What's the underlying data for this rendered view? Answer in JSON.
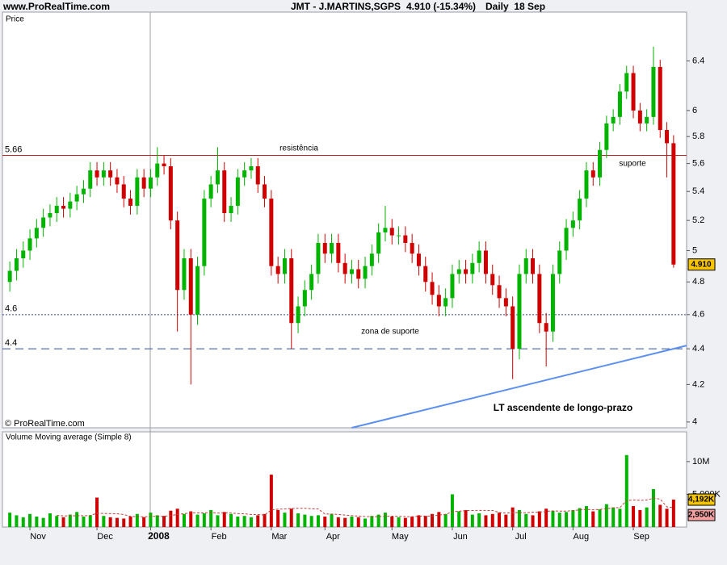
{
  "chart_data": {
    "type": "candlestick",
    "site": "www.ProRealTime.com",
    "title": "JMT - J.MARTINS,SGPS",
    "last": "4.910 (-15.34%)",
    "period": "Daily  18 Sep",
    "y_label": "Price",
    "copyright": "© ProRealTime.com",
    "log_scale": true,
    "ylim": [
      3.97,
      6.82
    ],
    "yticks": [
      4,
      4.2,
      4.4,
      4.6,
      4.8,
      5,
      5.2,
      5.4,
      5.6,
      5.8,
      6,
      6.4
    ],
    "up_color": "#00b400",
    "down_color": "#d00000",
    "categories": [
      null,
      null,
      null,
      "Nov",
      null,
      null,
      null,
      null,
      null,
      null,
      null,
      null,
      null,
      "Dec",
      null,
      null,
      null,
      null,
      null,
      null,
      null,
      "2008",
      null,
      null,
      null,
      null,
      null,
      null,
      null,
      null,
      "Feb",
      null,
      null,
      null,
      null,
      null,
      null,
      null,
      null,
      "Mar",
      null,
      null,
      null,
      null,
      null,
      null,
      null,
      "Apr",
      null,
      null,
      null,
      null,
      null,
      null,
      null,
      null,
      null,
      "May",
      null,
      null,
      null,
      null,
      null,
      null,
      null,
      null,
      "Jun",
      null,
      null,
      null,
      null,
      null,
      null,
      null,
      null,
      "Jul",
      null,
      null,
      null,
      null,
      null,
      null,
      null,
      null,
      "Aug",
      null,
      null,
      null,
      null,
      null,
      null,
      null,
      null,
      "Sep",
      null,
      null,
      null,
      null,
      null,
      null
    ],
    "open": [
      4.8,
      4.87,
      4.95,
      5.0,
      5.08,
      5.15,
      5.22,
      5.25,
      5.3,
      5.28,
      5.33,
      5.38,
      5.42,
      5.55,
      5.5,
      5.55,
      5.5,
      5.45,
      5.35,
      5.3,
      5.5,
      5.42,
      5.5,
      5.6,
      5.58,
      5.2,
      4.75,
      4.95,
      4.6,
      4.9,
      5.35,
      5.45,
      5.55,
      5.25,
      5.3,
      5.5,
      5.55,
      5.58,
      5.45,
      5.35,
      4.9,
      4.85,
      4.95,
      4.55,
      4.65,
      4.75,
      4.85,
      5.05,
      4.98,
      5.05,
      4.92,
      4.85,
      4.88,
      4.82,
      4.9,
      4.98,
      5.12,
      5.15,
      5.1,
      5.1,
      5.05,
      4.98,
      4.9,
      4.8,
      4.72,
      4.65,
      4.7,
      4.85,
      4.88,
      4.85,
      4.92,
      5.0,
      4.85,
      4.78,
      4.7,
      4.65,
      4.4,
      4.85,
      4.95,
      4.85,
      4.55,
      4.5,
      4.85,
      5.0,
      5.15,
      5.2,
      5.35,
      5.55,
      5.5,
      5.7,
      5.9,
      5.95,
      6.15,
      6.3,
      6.0,
      5.9,
      5.95,
      6.35,
      5.85,
      5.75
    ],
    "high": [
      4.93,
      5.01,
      5.06,
      5.14,
      5.21,
      5.28,
      5.31,
      5.36,
      5.36,
      5.39,
      5.44,
      5.48,
      5.61,
      5.61,
      5.61,
      5.61,
      5.56,
      5.51,
      5.41,
      5.56,
      5.56,
      5.56,
      5.72,
      5.66,
      5.64,
      5.26,
      5.01,
      5.01,
      4.96,
      5.41,
      5.51,
      5.72,
      5.61,
      5.36,
      5.56,
      5.61,
      5.64,
      5.64,
      5.51,
      5.41,
      4.96,
      5.01,
      5.01,
      4.71,
      4.81,
      4.91,
      5.11,
      5.11,
      5.11,
      5.11,
      4.98,
      4.94,
      4.94,
      4.96,
      5.04,
      5.18,
      5.3,
      5.21,
      5.16,
      5.16,
      5.11,
      5.04,
      4.96,
      4.86,
      4.78,
      4.76,
      4.91,
      4.94,
      4.94,
      4.98,
      5.06,
      5.06,
      4.91,
      4.84,
      4.76,
      4.71,
      4.91,
      5.01,
      5.01,
      4.91,
      4.61,
      4.91,
      5.06,
      5.21,
      5.26,
      5.41,
      5.61,
      5.61,
      5.76,
      5.96,
      6.01,
      6.21,
      6.36,
      6.36,
      6.06,
      6.01,
      6.52,
      6.41,
      5.91,
      5.81
    ],
    "low": [
      4.74,
      4.81,
      4.89,
      4.94,
      5.02,
      5.09,
      5.16,
      5.19,
      5.22,
      5.22,
      5.27,
      5.32,
      5.36,
      5.44,
      5.44,
      5.44,
      5.39,
      5.29,
      5.24,
      5.24,
      5.36,
      5.36,
      5.44,
      5.52,
      5.14,
      4.5,
      4.69,
      4.2,
      4.54,
      4.84,
      5.29,
      5.39,
      5.19,
      5.19,
      5.24,
      5.44,
      5.49,
      5.39,
      5.29,
      4.84,
      4.79,
      4.79,
      4.4,
      4.49,
      4.59,
      4.69,
      4.79,
      4.92,
      4.92,
      4.86,
      4.79,
      4.79,
      4.76,
      4.76,
      4.84,
      4.92,
      5.06,
      5.04,
      5.04,
      4.99,
      4.92,
      4.84,
      4.74,
      4.66,
      4.59,
      4.59,
      4.64,
      4.79,
      4.79,
      4.79,
      4.86,
      4.79,
      4.72,
      4.64,
      4.59,
      4.23,
      4.34,
      4.79,
      4.79,
      4.49,
      4.3,
      4.44,
      4.79,
      4.94,
      5.09,
      5.14,
      5.29,
      5.44,
      5.44,
      5.64,
      5.84,
      5.89,
      6.09,
      5.94,
      5.84,
      5.84,
      5.89,
      5.79,
      5.5,
      4.89
    ],
    "close": [
      4.87,
      4.95,
      5.0,
      5.08,
      5.15,
      5.22,
      5.25,
      5.3,
      5.28,
      5.33,
      5.38,
      5.42,
      5.55,
      5.5,
      5.55,
      5.5,
      5.45,
      5.35,
      5.3,
      5.5,
      5.42,
      5.5,
      5.6,
      5.58,
      5.2,
      4.75,
      4.95,
      4.6,
      4.9,
      5.35,
      5.45,
      5.55,
      5.25,
      5.3,
      5.5,
      5.55,
      5.58,
      5.45,
      5.35,
      4.9,
      4.85,
      4.95,
      4.55,
      4.65,
      4.75,
      4.85,
      5.05,
      4.98,
      5.05,
      4.92,
      4.85,
      4.88,
      4.82,
      4.9,
      4.98,
      5.12,
      5.15,
      5.1,
      5.1,
      5.05,
      4.98,
      4.9,
      4.8,
      4.72,
      4.65,
      4.7,
      4.85,
      4.88,
      4.85,
      4.92,
      5.0,
      4.85,
      4.78,
      4.7,
      4.65,
      4.4,
      4.85,
      4.95,
      4.85,
      4.55,
      4.5,
      4.85,
      5.0,
      5.15,
      5.2,
      5.35,
      5.55,
      5.5,
      5.7,
      5.9,
      5.95,
      6.15,
      6.3,
      6.0,
      5.9,
      5.95,
      6.35,
      5.85,
      5.75,
      4.91
    ],
    "last_label": "4.910",
    "levels": [
      {
        "value": 5.66,
        "color": "#c02020",
        "style": "solid"
      },
      {
        "value": 4.6,
        "color": "#3050a0",
        "style": "dotted"
      },
      {
        "value": 4.4,
        "color": "#3050a0",
        "style": "dashed"
      }
    ],
    "annotations": [
      {
        "text": "resistência",
        "color": "#d07030"
      },
      {
        "text": "suporte",
        "color": "#d07030"
      },
      {
        "text": "zona de suporte",
        "color": "#4f7fe0"
      }
    ],
    "trendline": {
      "label": "LT ascendente de longo-prazo",
      "color": "#5b8ff0",
      "values": [
        null,
        null,
        null,
        null,
        null,
        null,
        null,
        null,
        null,
        null,
        null,
        null,
        null,
        null,
        null,
        null,
        null,
        null,
        null,
        null,
        null,
        null,
        null,
        null,
        null,
        null,
        null,
        null,
        null,
        null,
        null,
        null,
        null,
        null,
        null,
        null,
        null,
        null,
        null,
        null,
        null,
        null,
        null,
        null,
        null,
        null,
        null,
        null,
        null,
        null,
        null,
        3.97,
        null,
        null,
        null,
        null,
        null,
        null,
        null,
        null,
        null,
        null,
        null,
        null,
        null,
        null,
        null,
        null,
        null,
        null,
        null,
        null,
        null,
        null,
        null,
        null,
        null,
        null,
        null,
        null,
        null,
        null,
        null,
        null,
        null,
        null,
        null,
        null,
        null,
        null,
        null,
        null,
        null,
        null,
        null,
        null,
        null,
        null,
        null,
        4.4
      ]
    },
    "volume": {
      "title": "Volume Moving average (Simple 8)",
      "ylim": [
        0,
        14.3
      ],
      "yticks": [
        {
          "value": 10,
          "label": "10M"
        },
        {
          "value": 5,
          "label": "5,000K"
        }
      ],
      "values": [
        2.2,
        1.8,
        1.5,
        2.0,
        1.6,
        1.4,
        2.1,
        1.7,
        1.5,
        1.9,
        2.3,
        1.6,
        1.8,
        4.5,
        1.7,
        1.5,
        1.4,
        1.3,
        1.6,
        2.0,
        1.5,
        2.2,
        1.8,
        1.7,
        2.5,
        2.8,
        2.0,
        2.4,
        1.9,
        2.1,
        2.6,
        1.8,
        2.3,
        2.0,
        1.6,
        1.7,
        1.5,
        1.8,
        2.0,
        8.0,
        2.6,
        2.2,
        2.8,
        2.1,
        1.9,
        1.7,
        1.8,
        1.6,
        2.0,
        1.5,
        1.4,
        1.6,
        1.5,
        1.3,
        1.7,
        1.9,
        2.2,
        1.6,
        1.5,
        1.4,
        1.6,
        1.8,
        1.7,
        2.0,
        2.3,
        2.0,
        5.0,
        2.4,
        2.6,
        1.9,
        2.1,
        1.8,
        2.0,
        2.2,
        1.9,
        3.0,
        2.6,
        2.0,
        1.8,
        2.4,
        2.8,
        2.5,
        2.2,
        2.3,
        2.6,
        2.9,
        3.2,
        2.4,
        2.7,
        3.5,
        3.0,
        2.8,
        11.0,
        3.2,
        2.6,
        3.0,
        5.8,
        3.4,
        2.8,
        4.192
      ],
      "last_value_label": "4,192K",
      "ma_color": "#c04040",
      "ma": [
        null,
        null,
        null,
        null,
        null,
        null,
        null,
        1.79,
        1.71,
        1.7,
        1.74,
        1.73,
        1.75,
        2.11,
        2.08,
        2.06,
        2.03,
        1.92,
        1.63,
        1.6,
        1.57,
        1.63,
        1.63,
        1.65,
        1.76,
        1.94,
        2.04,
        2.19,
        2.16,
        2.16,
        2.24,
        2.13,
        2.19,
        2.14,
        2.05,
        2.04,
        1.91,
        1.91,
        1.84,
        2.61,
        2.74,
        2.76,
        2.85,
        2.86,
        2.87,
        2.8,
        2.78,
        1.99,
        1.99,
        1.92,
        1.83,
        1.75,
        1.66,
        1.61,
        1.59,
        1.58,
        1.65,
        1.66,
        1.63,
        1.6,
        1.58,
        1.66,
        1.68,
        1.69,
        1.84,
        1.93,
        2.34,
        2.41,
        2.51,
        2.53,
        2.55,
        2.54,
        2.53,
        2.23,
        2.13,
        2.21,
        2.21,
        2.18,
        2.28,
        2.26,
        2.4,
        2.46,
        2.44,
        2.44,
        2.5,
        2.63,
        2.7,
        2.63,
        2.7,
        2.8,
        2.94,
        2.98,
        4.06,
        4.13,
        4.08,
        4.13,
        4.4,
        4.28,
        3.1,
        2.95
      ],
      "ma_last_label": "2,950K"
    }
  }
}
